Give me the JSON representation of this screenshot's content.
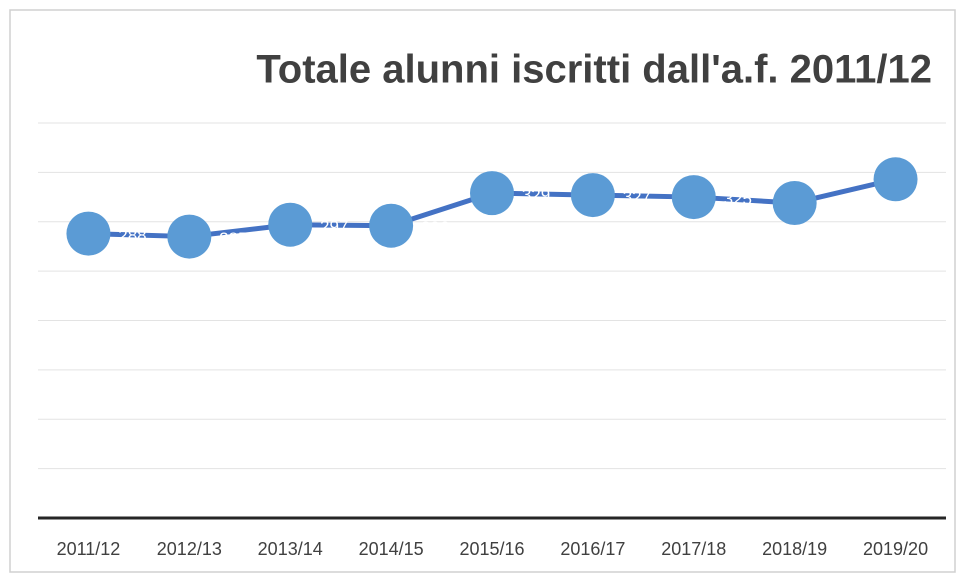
{
  "chart_data": {
    "type": "line",
    "title": "Totale alunni iscritti dall'a.f. 2011/12",
    "categories": [
      "2011/12",
      "2012/13",
      "2013/14",
      "2014/15",
      "2015/16",
      "2016/17",
      "2017/18",
      "2018/19",
      "2019/20"
    ],
    "series": [
      {
        "name": "Totale alunni",
        "color": "#4472c4",
        "marker_color": "#5b9bd5",
        "values": [
          288,
          285,
          297,
          296,
          329,
          327,
          325,
          319,
          343
        ]
      }
    ],
    "ylim": [
      0,
      400
    ],
    "yticks": [
      0,
      50,
      100,
      150,
      200,
      250,
      300,
      350,
      400
    ],
    "grid": true
  }
}
